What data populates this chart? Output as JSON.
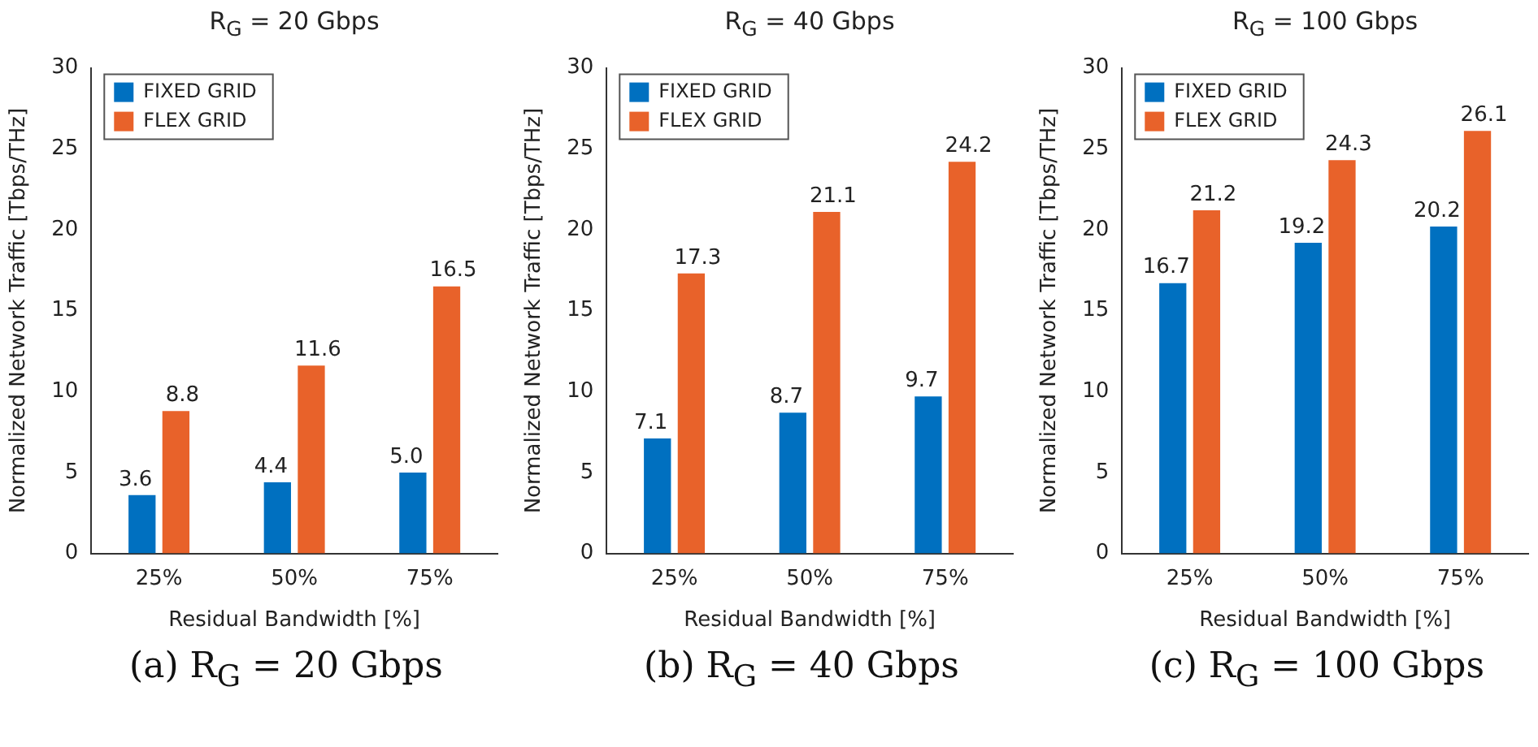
{
  "chart_data": [
    {
      "type": "bar",
      "title": "R$_{G}$ = 20 Gbps",
      "xlabel": "Residual Bandwidth [%]",
      "ylabel": "Normalized Network Traffic [Tbps/THz]",
      "categories": [
        "25%",
        "50%",
        "75%"
      ],
      "ylim": [
        0,
        30
      ],
      "yticks": [
        0,
        5,
        10,
        15,
        20,
        25,
        30
      ],
      "grid": false,
      "legend": "top left",
      "annotations": [
        "(a) R$_{G}$ = 20 Gbps"
      ],
      "series": [
        {
          "name": "FIXED GRID",
          "color": "#0070c0",
          "values": [
            3.6,
            4.4,
            5.0
          ],
          "value_labels": [
            "3.6",
            "4.4",
            "5.0"
          ]
        },
        {
          "name": "FLEX GRID",
          "color": "#e8622a",
          "values": [
            8.8,
            11.6,
            16.5
          ],
          "value_labels": [
            "8.8",
            "11.6",
            "16.5"
          ]
        }
      ]
    },
    {
      "type": "bar",
      "title": "R$_{G}$ = 40 Gbps",
      "xlabel": "Residual Bandwidth [%]",
      "ylabel": "Normalized Network Traffic [Tbps/THz]",
      "categories": [
        "25%",
        "50%",
        "75%"
      ],
      "ylim": [
        0,
        30
      ],
      "yticks": [
        0,
        5,
        10,
        15,
        20,
        25,
        30
      ],
      "grid": false,
      "legend": "top left",
      "annotations": [
        "(b) R$_{G}$ = 40 Gbps"
      ],
      "series": [
        {
          "name": "FIXED GRID",
          "color": "#0070c0",
          "values": [
            7.1,
            8.7,
            9.7
          ],
          "value_labels": [
            "7.1",
            "8.7",
            "9.7"
          ]
        },
        {
          "name": "FLEX GRID",
          "color": "#e8622a",
          "values": [
            17.3,
            21.1,
            24.2
          ],
          "value_labels": [
            "17.3",
            "21.1",
            "24.2"
          ]
        }
      ]
    },
    {
      "type": "bar",
      "title": "R$_{G}$ = 100 Gbps",
      "xlabel": "Residual Bandwidth [%]",
      "ylabel": "Normalized Network Traffic [Tbps/THz]",
      "categories": [
        "25%",
        "50%",
        "75%"
      ],
      "ylim": [
        0,
        30
      ],
      "yticks": [
        0,
        5,
        10,
        15,
        20,
        25,
        30
      ],
      "grid": false,
      "legend": "top left",
      "annotations": [
        "(c) R$_{G}$ = 100 Gbps"
      ],
      "series": [
        {
          "name": "FIXED GRID",
          "color": "#0070c0",
          "values": [
            16.7,
            19.2,
            20.2
          ],
          "value_labels": [
            "16.7",
            "19.2",
            "20.2"
          ]
        },
        {
          "name": "FLEX GRID",
          "color": "#e8622a",
          "values": [
            21.2,
            24.3,
            26.1
          ],
          "value_labels": [
            "21.2",
            "24.3",
            "26.1"
          ]
        }
      ]
    }
  ]
}
